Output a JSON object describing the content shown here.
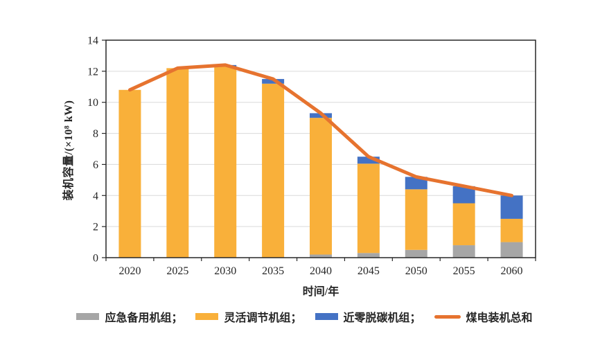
{
  "chart_data": {
    "type": "bar",
    "subtype": "stacked-bars-with-total-line",
    "title": "",
    "categories": [
      "2020",
      "2025",
      "2030",
      "2035",
      "2040",
      "2045",
      "2050",
      "2055",
      "2060"
    ],
    "series": [
      {
        "name": "应急备用机组",
        "type": "bar",
        "color": "#A6A6A6",
        "values": [
          0,
          0,
          0,
          0,
          0.2,
          0.3,
          0.5,
          0.8,
          1.0
        ]
      },
      {
        "name": "灵活调节机组",
        "type": "bar",
        "color": "#F9B03A",
        "values": [
          10.8,
          12.2,
          12.3,
          11.2,
          8.8,
          5.75,
          3.9,
          2.7,
          1.5
        ]
      },
      {
        "name": "近零脱碳机组",
        "type": "bar",
        "color": "#4472C4",
        "values": [
          0,
          0,
          0.1,
          0.3,
          0.3,
          0.45,
          0.8,
          1.1,
          1.5
        ]
      },
      {
        "name": "煤电装机总和",
        "type": "line",
        "color": "#E6732F",
        "values": [
          10.8,
          12.2,
          12.4,
          11.5,
          9.3,
          6.5,
          5.2,
          4.6,
          4.0
        ]
      }
    ],
    "xlabel": "时间/年",
    "ylabel": "装机容量/(×10⁸ kW)",
    "ylim": [
      0,
      14
    ],
    "ytick_step": 2,
    "yticks": [
      0,
      2,
      4,
      6,
      8,
      10,
      12,
      14
    ],
    "grid": true,
    "legend_position": "bottom",
    "colors": {
      "grid": "#D9D9D9",
      "axis": "#262626",
      "text": "#262626"
    }
  },
  "legend": {
    "items": [
      {
        "label": "应急备用机组；",
        "color": "#A6A6A6",
        "shape": "rect"
      },
      {
        "label": "灵活调节机组；",
        "color": "#F9B03A",
        "shape": "rect"
      },
      {
        "label": "近零脱碳机组；",
        "color": "#4472C4",
        "shape": "rect"
      },
      {
        "label": "煤电装机总和",
        "color": "#E6732F",
        "shape": "line"
      }
    ]
  }
}
